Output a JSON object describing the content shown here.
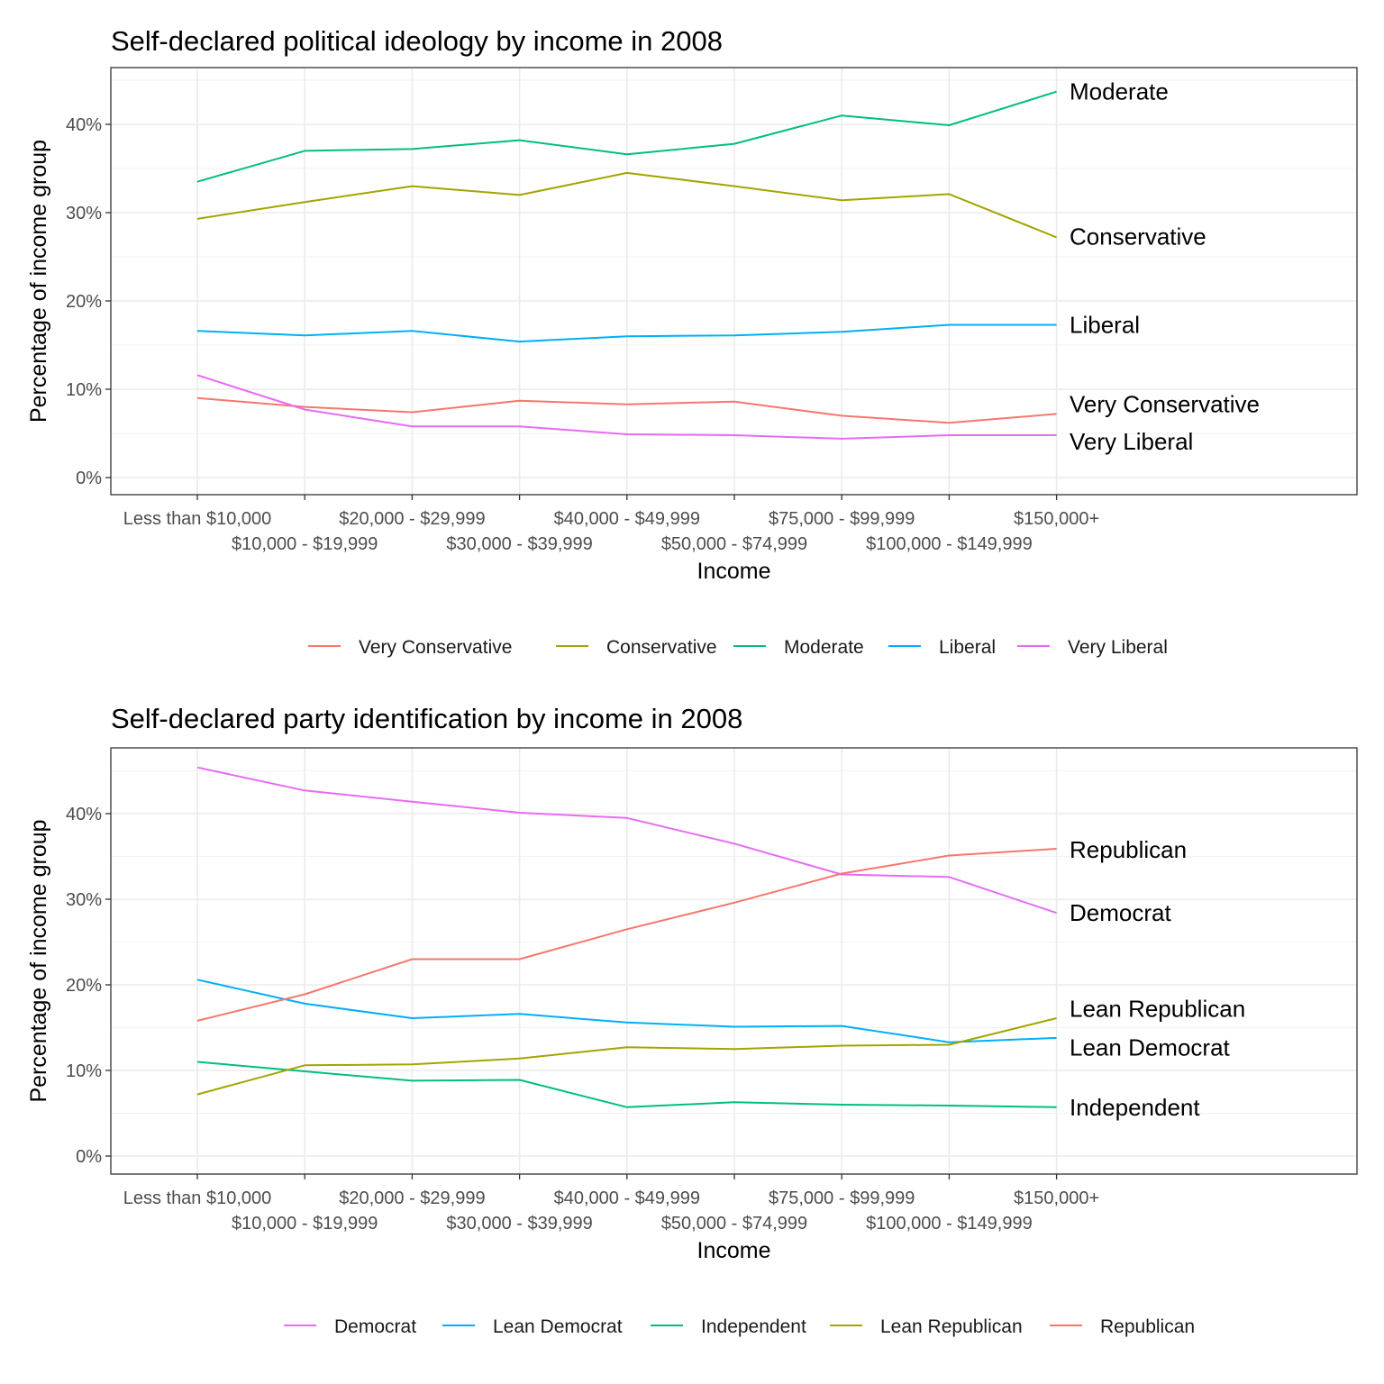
{
  "chart_data": [
    {
      "type": "line",
      "title": "Self-declared political ideology by income in 2008",
      "xlabel": "Income",
      "ylabel": "Percentage of income group",
      "ylim": [
        0,
        45
      ],
      "y_ticks": [
        "0%",
        "10%",
        "20%",
        "30%",
        "40%"
      ],
      "y_tick_values": [
        0,
        10,
        20,
        30,
        40
      ],
      "grid": true,
      "legend_position": "bottom",
      "categories": [
        "Less than $10,000",
        "$10,000 - $19,999",
        "$20,000 - $29,999",
        "$30,000 - $39,999",
        "$40,000 - $49,999",
        "$50,000 - $74,999",
        "$75,000 - $99,999",
        "$100,000 - $149,999",
        "$150,000+"
      ],
      "series": [
        {
          "name": "Very Conservative",
          "color": "#F8766D",
          "values": [
            9.0,
            8.0,
            7.4,
            8.7,
            8.3,
            8.6,
            7.0,
            6.2,
            7.2
          ]
        },
        {
          "name": "Conservative",
          "color": "#A3A500",
          "values": [
            29.3,
            31.2,
            33.0,
            32.0,
            34.5,
            33.0,
            31.4,
            32.1,
            27.2
          ]
        },
        {
          "name": "Moderate",
          "color": "#00BF7D",
          "values": [
            33.5,
            37.0,
            37.2,
            38.2,
            36.6,
            37.8,
            41.0,
            39.9,
            43.7
          ]
        },
        {
          "name": "Liberal",
          "color": "#00B0F6",
          "values": [
            16.6,
            16.1,
            16.6,
            15.4,
            16.0,
            16.1,
            16.5,
            17.3,
            17.3
          ]
        },
        {
          "name": "Very Liberal",
          "color": "#E76BF3",
          "values": [
            11.6,
            7.7,
            5.8,
            5.8,
            4.9,
            4.8,
            4.4,
            4.8,
            4.8
          ]
        }
      ]
    },
    {
      "type": "line",
      "title": "Self-declared party identification by income in 2008",
      "xlabel": "Income",
      "ylabel": "Percentage of income group",
      "ylim": [
        0,
        46
      ],
      "y_ticks": [
        "0%",
        "10%",
        "20%",
        "30%",
        "40%"
      ],
      "y_tick_values": [
        0,
        10,
        20,
        30,
        40
      ],
      "grid": true,
      "legend_position": "bottom",
      "categories": [
        "Less than $10,000",
        "$10,000 - $19,999",
        "$20,000 - $29,999",
        "$30,000 - $39,999",
        "$40,000 - $49,999",
        "$50,000 - $74,999",
        "$75,000 - $99,999",
        "$100,000 - $149,999",
        "$150,000+"
      ],
      "series": [
        {
          "name": "Democrat",
          "color": "#E76BF3",
          "values": [
            45.4,
            42.7,
            41.4,
            40.1,
            39.5,
            36.5,
            32.9,
            32.6,
            28.4
          ]
        },
        {
          "name": "Lean Democrat",
          "color": "#00B0F6",
          "values": [
            20.6,
            17.8,
            16.1,
            16.6,
            15.6,
            15.1,
            15.2,
            13.3,
            13.8
          ]
        },
        {
          "name": "Independent",
          "color": "#00BF7D",
          "values": [
            11.0,
            9.9,
            8.8,
            8.9,
            5.7,
            6.3,
            6.0,
            5.9,
            5.7
          ]
        },
        {
          "name": "Lean Republican",
          "color": "#A3A500",
          "values": [
            7.2,
            10.6,
            10.7,
            11.4,
            12.7,
            12.5,
            12.9,
            13.0,
            16.1
          ]
        },
        {
          "name": "Republican",
          "color": "#F8766D",
          "values": [
            15.8,
            18.9,
            23.0,
            23.0,
            26.5,
            29.6,
            33.0,
            35.1,
            35.9
          ]
        }
      ]
    }
  ],
  "panels": [
    {
      "end_labels": [
        {
          "text": "Moderate",
          "series": "Moderate",
          "y": 43.7
        },
        {
          "text": "Conservative",
          "series": "Conservative",
          "y": 27.3
        },
        {
          "text": "Liberal",
          "series": "Liberal",
          "y": 17.3
        },
        {
          "text": "Very Conservative",
          "series": "Very Conservative",
          "y": 8.3
        },
        {
          "text": "Very Liberal",
          "series": "Very Liberal",
          "y": 4.1
        }
      ],
      "legend_order": [
        "Very Conservative",
        "Conservative",
        "Moderate",
        "Liberal",
        "Very Liberal"
      ]
    },
    {
      "end_labels": [
        {
          "text": "Republican",
          "series": "Republican",
          "y": 35.8
        },
        {
          "text": "Democrat",
          "series": "Democrat",
          "y": 28.4
        },
        {
          "text": "Lean Republican",
          "series": "Lean Republican",
          "y": 17.2
        },
        {
          "text": "Lean Democrat",
          "series": "Lean Democrat",
          "y": 12.7
        },
        {
          "text": "Independent",
          "series": "Independent",
          "y": 5.7
        }
      ],
      "legend_order": [
        "Democrat",
        "Lean Democrat",
        "Independent",
        "Lean Republican",
        "Republican"
      ]
    }
  ]
}
